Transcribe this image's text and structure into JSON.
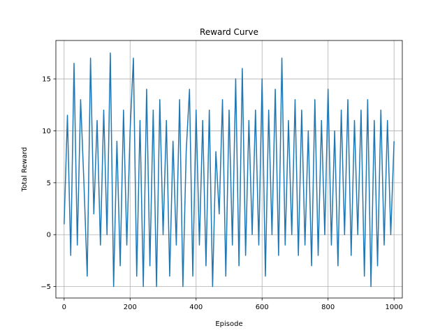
{
  "chart_data": {
    "type": "line",
    "title": "Reward Curve",
    "xlabel": "Episode",
    "ylabel": "Total Reward",
    "xlim": [
      -25,
      1025
    ],
    "ylim": [
      -6.1,
      18.7
    ],
    "xticks": [
      0,
      200,
      400,
      600,
      800,
      1000
    ],
    "yticks": [
      -5,
      0,
      5,
      10,
      15
    ],
    "grid": true,
    "series": [
      {
        "name": "",
        "color": "#1f77b4",
        "x": [
          0,
          10,
          20,
          30,
          40,
          50,
          60,
          70,
          80,
          90,
          100,
          110,
          120,
          130,
          140,
          150,
          160,
          170,
          180,
          190,
          200,
          210,
          220,
          230,
          240,
          250,
          260,
          270,
          280,
          290,
          300,
          310,
          320,
          330,
          340,
          350,
          360,
          370,
          380,
          390,
          400,
          410,
          420,
          430,
          440,
          450,
          460,
          470,
          480,
          490,
          500,
          510,
          520,
          530,
          540,
          550,
          560,
          570,
          580,
          590,
          600,
          610,
          620,
          630,
          640,
          650,
          660,
          670,
          680,
          690,
          700,
          710,
          720,
          730,
          740,
          750,
          760,
          770,
          780,
          790,
          800,
          810,
          820,
          830,
          840,
          850,
          860,
          870,
          880,
          890,
          900,
          910,
          920,
          930,
          940,
          950,
          960,
          970,
          980,
          990,
          1000
        ],
        "y": [
          1,
          11.5,
          -2,
          16.5,
          -1,
          13,
          5,
          -4,
          17,
          2,
          11,
          -1,
          12,
          0,
          17.5,
          -5,
          9,
          -3,
          12,
          -1,
          10,
          17,
          -4,
          11,
          -5,
          14,
          -3,
          12,
          -5,
          13,
          0,
          11,
          -4,
          9,
          -1,
          13,
          -5,
          8,
          14,
          -4,
          12,
          -1,
          11,
          -3,
          12,
          -5,
          8,
          2,
          13,
          -4,
          12,
          -1,
          15,
          -3,
          16,
          -2,
          11,
          0,
          12,
          -1,
          15,
          -4,
          12,
          0,
          14,
          -2,
          17,
          -1,
          11,
          0,
          13,
          -2,
          12,
          -1,
          10,
          -3,
          13,
          -2,
          11,
          0,
          14,
          -1,
          10,
          -3,
          12,
          0,
          13,
          -2,
          11,
          0,
          12,
          -4,
          13,
          -5,
          11,
          -3,
          12,
          -1,
          11,
          0,
          9
        ]
      }
    ]
  }
}
